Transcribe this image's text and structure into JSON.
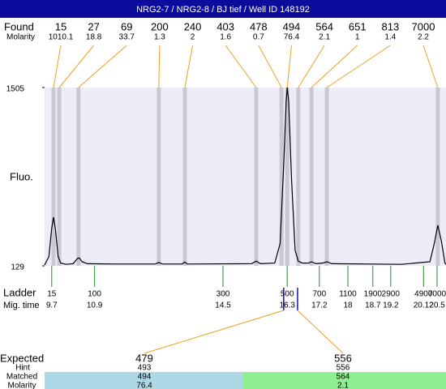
{
  "chart_data": {
    "type": "electropherogram",
    "title": "NRG2-7 / NRG2-8 / BJ tief / Well ID 148192",
    "y_label": "Fluo.",
    "ylim": [
      129,
      1505
    ],
    "yticks": [
      129,
      1505
    ],
    "xlim": [
      9.5,
      20.75
    ],
    "found": {
      "label": "Found",
      "molarity_label": "Molarity",
      "sizes": [
        15,
        27,
        69,
        200,
        240,
        403,
        478,
        494,
        564,
        651,
        813,
        7000
      ],
      "molarity": [
        1010.1,
        18.8,
        33.7,
        1.3,
        2,
        1.6,
        0.7,
        76.4,
        2.1,
        1,
        1.4,
        2.2
      ],
      "peak_times": [
        9.75,
        9.91,
        10.45,
        12.7,
        13.43,
        15.43,
        16.14,
        16.3,
        16.61,
        16.98,
        17.41,
        20.52
      ]
    },
    "trace": {
      "color": "#000000",
      "x": [
        9.5,
        9.62,
        9.7,
        9.75,
        9.8,
        9.88,
        9.95,
        10.1,
        10.3,
        10.42,
        10.47,
        10.55,
        10.7,
        11.5,
        12.6,
        12.7,
        12.8,
        13.35,
        13.43,
        13.5,
        15.3,
        15.43,
        15.55,
        15.95,
        16.1,
        16.2,
        16.27,
        16.3,
        16.34,
        16.42,
        16.52,
        16.61,
        16.72,
        16.9,
        16.98,
        17.1,
        17.3,
        17.41,
        17.55,
        19.5,
        20.3,
        20.42,
        20.52,
        20.62,
        20.72,
        20.75
      ],
      "y": [
        135,
        200,
        420,
        504,
        420,
        200,
        150,
        140,
        145,
        185,
        190,
        160,
        145,
        143,
        143,
        155,
        143,
        143,
        158,
        143,
        145,
        165,
        145,
        150,
        300,
        900,
        1400,
        1505,
        1400,
        800,
        250,
        165,
        150,
        150,
        160,
        145,
        150,
        160,
        145,
        140,
        160,
        300,
        442,
        320,
        150,
        140
      ]
    },
    "ladder": {
      "label": "Ladder",
      "time_label": "Mig. time",
      "sizes": [
        15,
        100,
        300,
        500,
        700,
        1100,
        1900,
        2900,
        4900,
        7000
      ],
      "times": [
        9.7,
        10.9,
        14.5,
        16.3,
        17.2,
        18,
        18.7,
        19.2,
        20.12,
        20.5
      ]
    },
    "expected": {
      "label": "Expected",
      "hint_label": "Hint",
      "matched_label": "Matched",
      "molarity_label": "Molarity",
      "times": [
        16.2,
        16.59
      ],
      "sizes": [
        479,
        556
      ],
      "hint": [
        493,
        556
      ],
      "matched": [
        494,
        564
      ],
      "molarity": [
        76.4,
        2.1
      ],
      "colors": [
        "#add8e6",
        "#90ee90"
      ]
    }
  }
}
